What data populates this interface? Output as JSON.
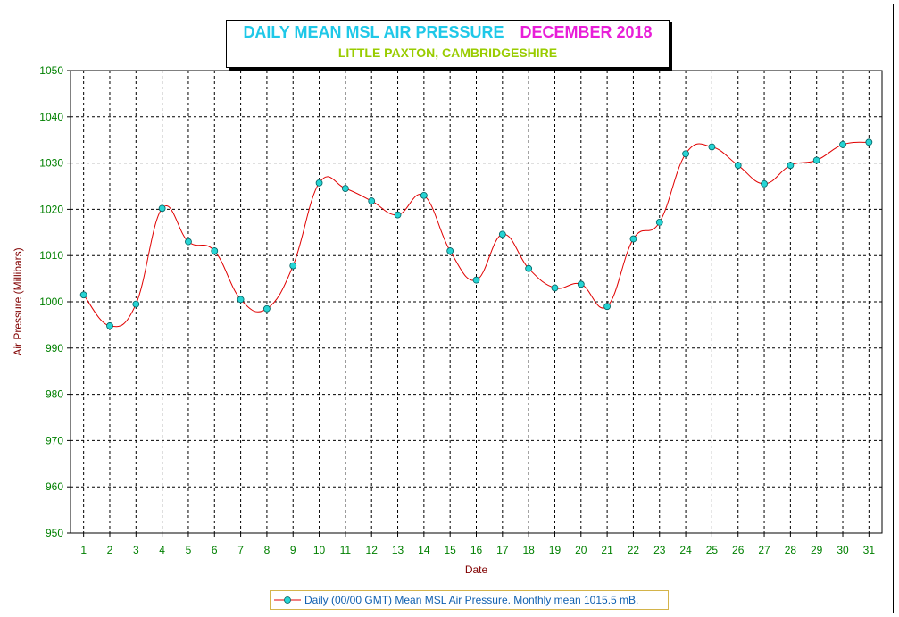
{
  "title": {
    "main": "DAILY MEAN MSL AIR PRESSURE",
    "month": "DECEMBER 2018",
    "subtitle": "LITTLE PAXTON, CAMBRIDGESHIRE"
  },
  "legend": {
    "label": "Daily (00/00 GMT) Mean MSL Air Pressure. Monthly mean 1015.5 mB."
  },
  "colors": {
    "title_main": "#1fc8e8",
    "title_month": "#e81ed8",
    "subtitle": "#99cc00",
    "line": "#e00000",
    "marker_fill": "#27d4d4",
    "axis_text": "#008000",
    "axis_label": "#800000",
    "legend_text": "#1060b0"
  },
  "chart_data": {
    "type": "line",
    "xlabel": "Date",
    "ylabel": "Air Pressure (Millibars)",
    "ylim": [
      950,
      1050
    ],
    "yticks": [
      950,
      960,
      970,
      980,
      990,
      1000,
      1010,
      1020,
      1030,
      1040,
      1050
    ],
    "grid": true,
    "legend_position": "bottom",
    "categories": [
      "1",
      "2",
      "3",
      "4",
      "5",
      "6",
      "7",
      "8",
      "9",
      "10",
      "11",
      "12",
      "13",
      "14",
      "15",
      "16",
      "17",
      "18",
      "19",
      "20",
      "21",
      "22",
      "23",
      "24",
      "25",
      "26",
      "27",
      "28",
      "29",
      "30",
      "31"
    ],
    "series": [
      {
        "name": "Daily (00/00 GMT) Mean MSL Air Pressure. Monthly mean 1015.5 mB.",
        "values": [
          1001.5,
          994.8,
          999.5,
          1020.2,
          1013.0,
          1011.0,
          1000.5,
          998.5,
          1007.8,
          1025.7,
          1024.5,
          1021.8,
          1018.8,
          1023.0,
          1011.0,
          1004.7,
          1014.6,
          1007.2,
          1003.0,
          1003.8,
          999.0,
          1013.6,
          1017.2,
          1032.0,
          1033.5,
          1029.5,
          1025.5,
          1029.5,
          1030.6,
          1034.0,
          1034.5
        ]
      }
    ]
  }
}
